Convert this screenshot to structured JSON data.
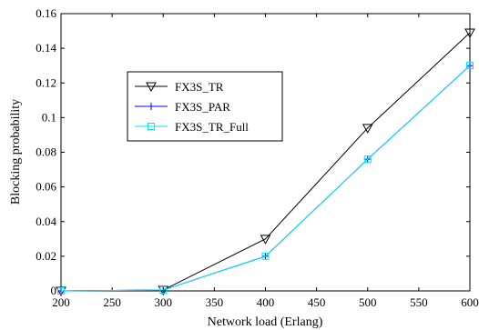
{
  "chart_data": {
    "type": "line",
    "xlabel": "Network load (Erlang)",
    "ylabel": "Blocking probability",
    "xlim": [
      200,
      600
    ],
    "ylim": [
      0,
      0.16
    ],
    "xticks": [
      200,
      250,
      300,
      350,
      400,
      450,
      500,
      550,
      600
    ],
    "yticks": [
      0,
      0.02,
      0.04,
      0.06,
      0.08,
      0.1,
      0.12,
      0.14,
      0.16
    ],
    "xtick_labels": [
      "200",
      "250",
      "300",
      "350",
      "400",
      "450",
      "500",
      "550",
      "600"
    ],
    "ytick_labels": [
      "0",
      "0.02",
      "0.04",
      "0.06",
      "0.08",
      "0.1",
      "0.12",
      "0.14",
      "0.16"
    ],
    "grid": false,
    "legend_position": "upper-left-center",
    "x": [
      200,
      300,
      400,
      500,
      600
    ],
    "series": [
      {
        "name": "FX3S_TR",
        "values": [
          0,
          0.0005,
          0.03,
          0.094,
          0.149
        ],
        "color": "#000000",
        "marker": "triangle-down"
      },
      {
        "name": "FX3S_PAR",
        "values": [
          0,
          0.0005,
          0.02,
          0.076,
          0.13
        ],
        "color": "#0000ff",
        "marker": "plus"
      },
      {
        "name": "FX3S_TR_Full",
        "values": [
          0,
          0.0005,
          0.02,
          0.076,
          0.13
        ],
        "color": "#00e5ff",
        "marker": "square"
      }
    ]
  }
}
